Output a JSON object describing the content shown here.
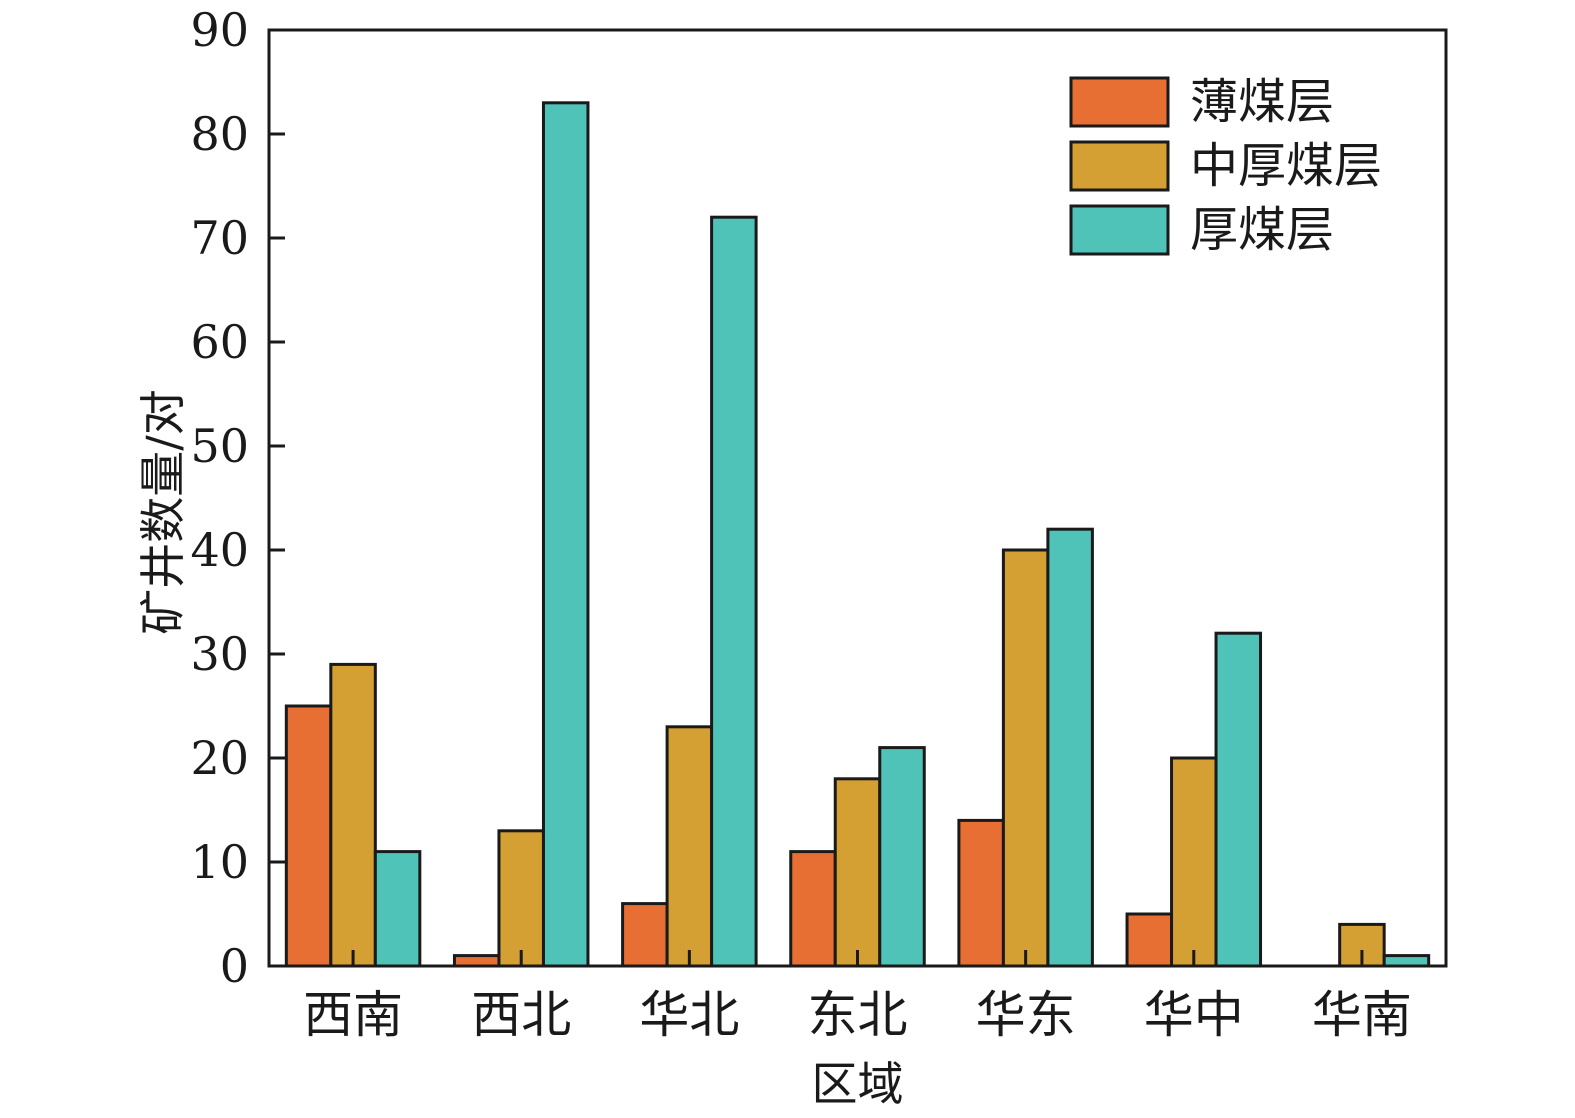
{
  "chart_data": {
    "type": "bar",
    "xlabel": "区域",
    "ylabel": "矿井数量/对",
    "ylim": [
      0,
      90
    ],
    "yticks": [
      0,
      10,
      20,
      30,
      40,
      50,
      60,
      70,
      80,
      90
    ],
    "categories": [
      "西南",
      "西北",
      "华北",
      "东北",
      "华东",
      "华中",
      "华南"
    ],
    "series": [
      {
        "name": "薄煤层",
        "color": "#E86F33",
        "values": [
          25,
          1,
          6,
          11,
          14,
          5,
          0
        ]
      },
      {
        "name": "中厚煤层",
        "color": "#D49F33",
        "values": [
          29,
          13,
          23,
          18,
          40,
          20,
          4
        ]
      },
      {
        "name": "厚煤层",
        "color": "#50C3B8",
        "values": [
          11,
          83,
          72,
          21,
          42,
          32,
          1
        ]
      }
    ],
    "legend_position": "top-right",
    "grid": false
  }
}
